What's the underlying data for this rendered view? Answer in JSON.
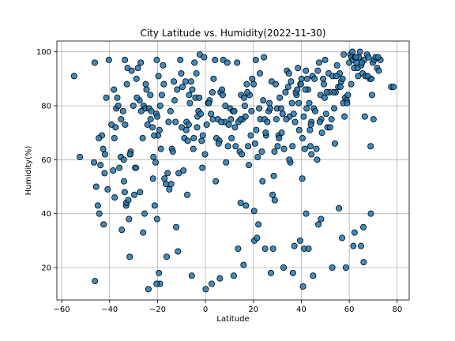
{
  "chart_data": {
    "type": "scatter",
    "title": "City Latitude vs. Humidity(2022-11-30)",
    "xlabel": "Latitude",
    "ylabel": "Humidity(%)",
    "xlim": [
      -62,
      85
    ],
    "ylim": [
      8,
      104
    ],
    "xticks": [
      -60,
      -40,
      -20,
      0,
      20,
      40,
      60,
      80
    ],
    "xtick_labels": [
      "−60",
      "−40",
      "−20",
      "0",
      "20",
      "40",
      "60",
      "80"
    ],
    "yticks": [
      20,
      40,
      60,
      80,
      100
    ],
    "ytick_labels": [
      "20",
      "40",
      "60",
      "80",
      "100"
    ],
    "grid": true,
    "marker_color": "#1f77b4",
    "marker_edge_color": "#000000",
    "x": [
      -54.8,
      -52.4,
      -46.5,
      -46.2,
      -45.6,
      -44.9,
      -44.3,
      -43.8,
      -43.2,
      -42.5,
      -42.1,
      -41.9,
      -41.4,
      -40.8,
      -39.2,
      -38.5,
      -38.0,
      -37.5,
      -37.2,
      -36.4,
      -35.9,
      -35.3,
      -34.9,
      -34.4,
      -34.0,
      -33.7,
      -33.5,
      -33.1,
      -32.8,
      -32.5,
      -31.9,
      -31.6,
      -31.2,
      -30.8,
      -29.7,
      -29.3,
      -28.8,
      -28.2,
      -27.5,
      -27.0,
      -26.2,
      -25.8,
      -25.1,
      -24.6,
      -24.2,
      -23.5,
      -23.0,
      -22.6,
      -22.1,
      -21.7,
      -21.2,
      -20.8,
      -20.5,
      -20.1,
      -19.8,
      -19.6,
      -19.2,
      -18.6,
      -18.2,
      -17.7,
      -17.1,
      -16.5,
      -15.8,
      -15.1,
      -14.6,
      -14.0,
      -13.2,
      -12.5,
      -11.8,
      -11.2,
      -10.5,
      -9.9,
      -9.2,
      -8.8,
      -8.3,
      -7.9,
      -7.4,
      -7.0,
      -6.5,
      -6.0,
      -5.5,
      -5.1,
      -4.6,
      -4.2,
      -3.8,
      -3.3,
      -2.9,
      -2.4,
      -2.0,
      -1.6,
      -1.1,
      -0.6,
      -0.2,
      0.5,
      1.1,
      1.7,
      2.3,
      2.9,
      3.4,
      4.0,
      4.6,
      5.2,
      5.8,
      6.3,
      6.9,
      7.4,
      8.0,
      8.6,
      9.1,
      9.7,
      10.3,
      10.9,
      11.5,
      12.0,
      12.6,
      13.2,
      13.8,
      14.3,
      14.9,
      15.5,
      16.1,
      16.7,
      17.2,
      17.8,
      18.4,
      18.9,
      19.5,
      20.1,
      20.7,
      21.2,
      21.8,
      22.4,
      22.9,
      23.5,
      24.1,
      24.7,
      25.3,
      25.8,
      26.4,
      27.0,
      27.6,
      28.2,
      28.8,
      29.3,
      29.9,
      30.5,
      31.0,
      31.6,
      32.2,
      32.8,
      33.4,
      34.0,
      34.5,
      35.1,
      35.7,
      36.3,
      36.8,
      37.4,
      38.0,
      38.6,
      39.1,
      39.6,
      40.1,
      40.5,
      41.0,
      41.4,
      41.9,
      42.4,
      42.8,
      43.3,
      43.8,
      44.2,
      44.7,
      45.2,
      45.8,
      46.3,
      46.9,
      47.4,
      48.0,
      48.6,
      49.1,
      49.7,
      50.3,
      50.9,
      51.4,
      52.0,
      52.6,
      53.1,
      53.7,
      54.3,
      54.9,
      55.4,
      56.0,
      56.6,
      57.2,
      57.7,
      58.3,
      58.9,
      59.4,
      60.0,
      60.5,
      61.0,
      61.5,
      62.0,
      62.5,
      63.0,
      63.5,
      64.0,
      64.5,
      65.0,
      65.6,
      66.2,
      66.8,
      67.4,
      68.0,
      68.6,
      69.2,
      69.8,
      70.4,
      71.0,
      71.6,
      72.3,
      73.0,
      77.5,
      78.5,
      -44.5,
      -38.2,
      -33.6,
      -30.1,
      -26.8,
      -21.4,
      -18.9,
      -12.9,
      -6.8,
      -1.3,
      3.1,
      8.3,
      12.3,
      16.4,
      21.0,
      25.1,
      29.6,
      33.7,
      37.7,
      41.7,
      45.5,
      49.4,
      53.4,
      57.5,
      61.3,
      65.3,
      69.5,
      -35.2,
      -28.6,
      -20.3,
      -10.1,
      -2.6,
      6.6,
      14.6,
      22.7,
      30.7,
      38.9,
      46.6,
      54.6,
      62.8,
      70.1,
      -40.3,
      -24.9,
      -15.4,
      -4.9,
      5.5,
      15.2,
      24.4,
      34.8,
      44.0,
      51.7,
      59.1,
      66.5,
      -31.4,
      -17.4,
      -8.0,
      1.4,
      10.6,
      19.2,
      28.5,
      38.3,
      48.3,
      58.0,
      67.7,
      -36.8,
      -22.9,
      -13.6,
      -3.5,
      7.2,
      17.5,
      26.7,
      36.1,
      43.6,
      50.6,
      56.3,
      63.7,
      72.0,
      -42.7,
      -27.3,
      -9.6,
      9.4,
      18.1,
      31.8,
      39.8,
      47.7,
      55.7,
      64.9,
      -46.1,
      -33.0,
      -14.3,
      -5.7,
      13.6,
      23.8,
      35.4,
      42.2,
      49.9,
      60.8,
      68.9,
      -29.0,
      -19.4,
      2.6,
      11.8,
      27.3,
      40.7,
      52.9,
      62.2,
      -23.8,
      -11.5,
      0.1,
      20.4,
      32.6,
      44.9,
      57.0,
      65.9,
      -32.2,
      -16.2,
      6.0,
      24.9,
      37.1,
      47.1,
      61.7,
      -26.0,
      -7.6,
      16.9,
      30.1,
      41.2,
      54.0,
      69.0,
      -21.9,
      4.3,
      22.1,
      36.5,
      58.6,
      -37.9,
      -12.2,
      28.9,
      43.0,
      66.0,
      35.0,
      39.5,
      42.0,
      21.5,
      15.9,
      14.7,
      20.3,
      28.0,
      40.4,
      44.2,
      48.2,
      -25.4,
      -19.0,
      -34.1,
      -31.5,
      -20.4,
      -20.2
    ],
    "y": [
      91,
      61,
      59,
      96,
      50,
      43,
      40,
      58,
      69,
      36,
      55,
      62,
      83,
      49,
      73,
      56,
      68,
      72,
      79,
      80,
      57,
      61,
      34,
      78,
      52,
      48,
      73,
      43,
      88,
      94,
      38,
      24,
      63,
      93,
      47,
      57,
      90,
      94,
      82,
      96,
      68,
      80,
      79,
      86,
      73,
      79,
      84,
      78,
      72,
      61,
      43,
      59,
      77,
      76,
      69,
      91,
      71,
      64,
      84,
      95,
      53,
      51,
      55,
      49,
      78,
      64,
      89,
      74,
      86,
      55,
      97,
      72,
      56,
      68,
      89,
      74,
      67,
      73,
      81,
      89,
      86,
      64,
      96,
      83,
      92,
      76,
      78,
      99,
      77,
      67,
      69,
      98,
      62,
      73,
      81,
      82,
      77,
      85,
      90,
      97,
      68,
      75,
      67,
      85,
      86,
      97,
      74,
      59,
      96,
      73,
      79,
      68,
      78,
      78,
      65,
      96,
      74,
      63,
      84,
      75,
      83,
      76,
      88,
      65,
      84,
      69,
      90,
      88,
      66,
      71,
      61,
      79,
      75,
      63,
      82,
      75,
      69,
      74,
      78,
      79,
      89,
      27,
      63,
      88,
      79,
      69,
      83,
      79,
      77,
      64,
      85,
      93,
      87,
      76,
      89,
      65,
      77,
      74,
      84,
      94,
      71,
      88,
      90,
      68,
      76,
      64,
      93,
      90,
      86,
      81,
      65,
      74,
      91,
      79,
      78,
      64,
      93,
      96,
      84,
      70,
      90,
      83,
      77,
      72,
      92,
      72,
      75,
      91,
      79,
      85,
      95,
      87,
      92,
      89,
      90,
      99,
      83,
      82,
      84,
      96,
      99,
      98,
      97,
      94,
      98,
      96,
      94,
      98,
      100,
      95,
      92,
      97,
      91,
      99,
      98,
      90,
      90,
      96,
      97,
      98,
      94,
      93,
      97,
      87,
      87,
      68,
      86,
      97,
      80,
      78,
      69,
      80,
      82,
      84,
      57,
      75,
      80,
      72,
      80,
      97,
      70,
      75,
      75,
      85,
      86,
      90,
      88,
      85,
      81,
      100,
      96,
      84,
      75,
      83,
      97,
      92,
      83,
      74,
      75,
      92,
      68,
      81,
      60,
      91,
      98,
      75,
      97,
      88,
      74,
      68,
      66,
      62,
      98,
      92,
      73,
      85,
      81,
      76,
      62,
      88,
      71,
      81,
      75,
      78,
      54,
      86,
      75,
      76,
      91,
      83,
      75,
      63,
      72,
      84,
      85,
      81,
      81,
      71,
      85,
      87,
      91,
      98,
      64,
      48,
      87,
      65,
      58,
      70,
      88,
      74,
      42,
      28,
      15,
      44,
      51,
      17,
      27,
      52,
      59,
      79,
      97,
      88,
      65,
      57,
      18,
      14,
      17,
      18,
      13,
      20,
      33,
      12,
      26,
      12,
      30,
      20,
      17,
      31,
      35,
      45,
      24,
      16,
      27,
      28,
      36,
      28,
      33,
      47,
      43,
      65,
      27,
      66,
      40,
      53,
      52,
      36,
      18,
      20,
      46,
      35,
      45,
      27,
      22,
      60,
      30,
      40,
      31,
      21,
      44,
      41,
      47,
      53,
      62,
      38,
      40,
      14,
      60,
      62,
      14,
      38
    ]
  }
}
